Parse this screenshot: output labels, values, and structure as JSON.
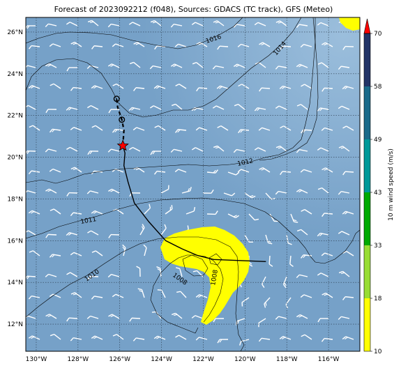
{
  "title": "Forecast of 2023092212 (f048), Sources: GDACS (TC track), GFS (Meteo)",
  "colors": {
    "ocean": "#76a1c8",
    "ocean_light": "#93b6d8",
    "wind_barb": "#ffffff",
    "isobar": "#000000",
    "gridline": "#2a3b4c",
    "track": "#000000",
    "current_position_marker": "#ff0000",
    "high_wind_area": "#ffff00"
  },
  "map": {
    "lon_range": [
      -130.5,
      -114.5
    ],
    "lat_range": [
      10.7,
      26.7
    ],
    "lon_ticks": [
      "130°W",
      "128°W",
      "126°W",
      "124°W",
      "122°W",
      "120°W",
      "118°W",
      "116°W"
    ],
    "lat_ticks": [
      "12°N",
      "14°N",
      "16°N",
      "18°N",
      "20°N",
      "22°N",
      "24°N",
      "26°N"
    ],
    "gridlines": true
  },
  "isobar_labels": [
    "1016",
    "1014",
    "1012",
    "1011",
    "1010",
    "1008",
    "1008"
  ],
  "track": {
    "past": [
      [
        -119.0,
        15.0
      ],
      [
        -121.5,
        15.1
      ],
      [
        -122.3,
        15.3
      ],
      [
        -123.0,
        15.6
      ],
      [
        -123.8,
        16.0
      ],
      [
        -124.6,
        16.9
      ],
      [
        -125.3,
        17.8
      ],
      [
        -125.6,
        18.8
      ],
      [
        -125.8,
        19.6
      ],
      [
        -125.75,
        20.2
      ],
      [
        -125.85,
        20.55
      ]
    ],
    "forecast": [
      [
        -125.85,
        20.55
      ],
      [
        -125.8,
        21.3
      ],
      [
        -125.9,
        21.8
      ],
      [
        -126.1,
        22.4
      ],
      [
        -126.15,
        22.8
      ]
    ],
    "current_position": [
      -125.85,
      20.55
    ],
    "forecast_points": [
      [
        -125.9,
        21.8
      ],
      [
        -126.15,
        22.8
      ]
    ]
  },
  "colorbar": {
    "label": "10 m wind speed (m/s)",
    "ticks": [
      "10",
      "18",
      "33",
      "43",
      "49",
      "58",
      "70"
    ],
    "colors": [
      "#ffff00",
      "#99dd33",
      "#00aa00",
      "#009999",
      "#1a6a8a",
      "#223366",
      "#ff0000"
    ]
  }
}
